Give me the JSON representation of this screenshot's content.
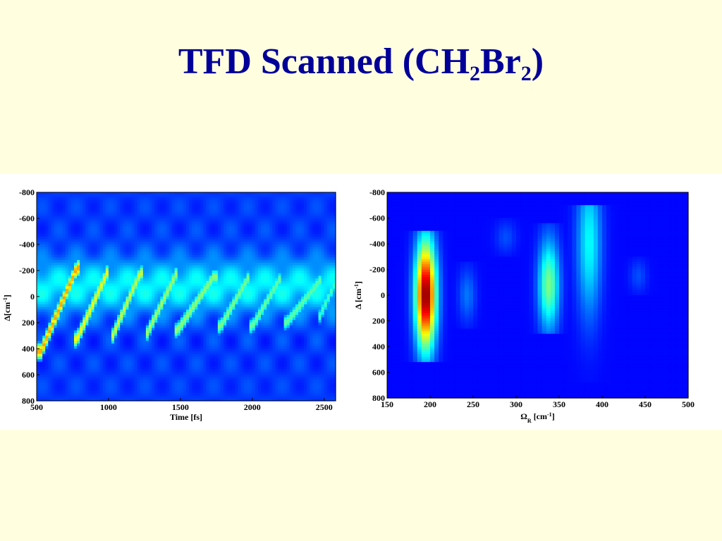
{
  "slide": {
    "title_prefix": "TFD Scanned (CH",
    "title_sub1": "2",
    "title_mid": "Br",
    "title_sub2": "2",
    "title_suffix": ")"
  },
  "chart_data": [
    {
      "type": "heatmap",
      "title": "",
      "xlabel": "Time [fs]",
      "ylabel": "Δ[cm-1]",
      "ylabel_parts": {
        "symbol": "Δ",
        "main": "[cm",
        "sup": "-1",
        "end": "]"
      },
      "xlim": [
        500,
        2580
      ],
      "ylim": [
        -800,
        800
      ],
      "y_inverted": true,
      "x_ticks": [
        500,
        1000,
        1500,
        2000,
        2500
      ],
      "x_tick_labels": [
        "500",
        "1000",
        "1500",
        "2000",
        "2500"
      ],
      "y_ticks": [
        -800,
        -600,
        -400,
        -200,
        0,
        200,
        400,
        600,
        800
      ],
      "y_tick_labels": [
        "-800",
        "-600",
        "-400",
        "-200",
        "0",
        "200",
        "400",
        "600",
        "800"
      ],
      "colormap": "jet",
      "background_level": 0.18,
      "band": {
        "delta_center": -80,
        "delta_halfwidth": 260,
        "level": 0.36
      },
      "stripes": [
        {
          "t_start": 530,
          "t_end": 780,
          "delta_top": -220,
          "delta_bottom": 420,
          "peak": 0.72
        },
        {
          "t_start": 780,
          "t_end": 990,
          "delta_top": -180,
          "delta_bottom": 330,
          "peak": 0.62
        },
        {
          "t_start": 1030,
          "t_end": 1220,
          "delta_top": -180,
          "delta_bottom": 300,
          "peak": 0.58
        },
        {
          "t_start": 1270,
          "t_end": 1470,
          "delta_top": -170,
          "delta_bottom": 280,
          "peak": 0.54
        },
        {
          "t_start": 1480,
          "t_end": 1730,
          "delta_top": -150,
          "delta_bottom": 260,
          "peak": 0.52
        },
        {
          "t_start": 1780,
          "t_end": 1970,
          "delta_top": -140,
          "delta_bottom": 230,
          "peak": 0.5
        },
        {
          "t_start": 2000,
          "t_end": 2190,
          "delta_top": -130,
          "delta_bottom": 230,
          "peak": 0.48
        },
        {
          "t_start": 2240,
          "t_end": 2470,
          "delta_top": -120,
          "delta_bottom": 200,
          "peak": 0.47
        },
        {
          "t_start": 2470,
          "t_end": 2580,
          "delta_top": -110,
          "delta_bottom": 150,
          "peak": 0.44
        }
      ]
    },
    {
      "type": "heatmap",
      "title": "",
      "xlabel": "ΩR [cm-1]",
      "xlabel_parts": {
        "symbol": "Ω",
        "sub": "R",
        "main": " [cm",
        "sup": "-1",
        "end": "]"
      },
      "ylabel": "Δ [cm-1]",
      "ylabel_parts": {
        "symbol": "Δ",
        "main": " [cm",
        "sup": "-1",
        "end": "]"
      },
      "xlim": [
        150,
        500
      ],
      "ylim": [
        -800,
        800
      ],
      "y_inverted": true,
      "x_ticks": [
        150,
        200,
        250,
        300,
        350,
        400,
        450,
        500
      ],
      "x_tick_labels": [
        "150",
        "200",
        "250",
        "300",
        "350",
        "400",
        "450",
        "500"
      ],
      "y_ticks": [
        -800,
        -600,
        -400,
        -200,
        0,
        200,
        400,
        600,
        800
      ],
      "y_tick_labels": [
        "-800",
        "-600",
        "-400",
        "-200",
        "0",
        "200",
        "400",
        "600",
        "800"
      ],
      "colormap": "jet",
      "background_level": 0.13,
      "peaks": [
        {
          "omega": 195,
          "width": 12,
          "delta_top": -500,
          "delta_bottom": 520,
          "delta_center": 0,
          "peak": 1.0
        },
        {
          "omega": 243,
          "width": 10,
          "delta_top": -250,
          "delta_bottom": 250,
          "delta_center": 0,
          "peak": 0.24
        },
        {
          "omega": 288,
          "width": 12,
          "delta_top": -600,
          "delta_bottom": -300,
          "delta_center": -450,
          "peak": 0.2
        },
        {
          "omega": 338,
          "width": 12,
          "delta_top": -550,
          "delta_bottom": 300,
          "delta_center": -80,
          "peak": 0.5
        },
        {
          "omega": 385,
          "width": 14,
          "delta_top": -700,
          "delta_bottom": 680,
          "delta_center": -400,
          "peak": 0.38
        },
        {
          "omega": 442,
          "width": 10,
          "delta_top": -300,
          "delta_bottom": 0,
          "delta_center": -150,
          "peak": 0.2
        }
      ]
    }
  ]
}
